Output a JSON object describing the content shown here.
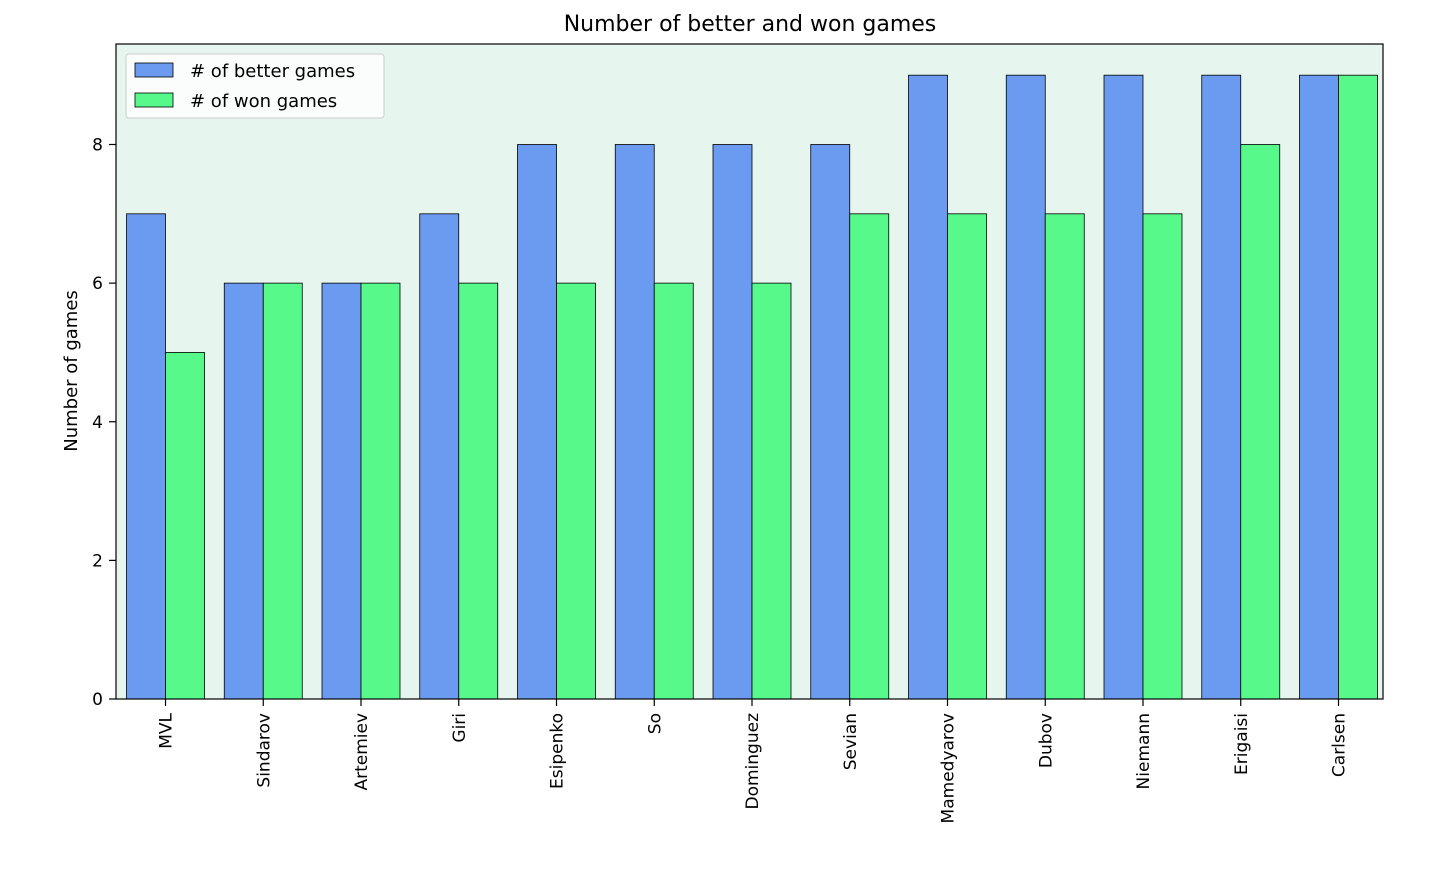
{
  "chart_data": {
    "type": "bar",
    "title": "Number of better and won games",
    "xlabel": "",
    "ylabel": "Number of games",
    "ylim": [
      0,
      9.45
    ],
    "yticks": [
      0,
      2,
      4,
      6,
      8
    ],
    "categories": [
      "MVL",
      "Sindarov",
      "Artemiev",
      "Giri",
      "Esipenko",
      "So",
      "Dominguez",
      "Sevian",
      "Mamedyarov",
      "Dubov",
      "Niemann",
      "Erigaisi",
      "Carlsen"
    ],
    "series": [
      {
        "name": "# of better games",
        "color": "#6a9bf0",
        "values": [
          7,
          6,
          6,
          7,
          8,
          8,
          8,
          8,
          9,
          9,
          9,
          9,
          9
        ]
      },
      {
        "name": "# of won games",
        "color": "#57f98b",
        "values": [
          5,
          6,
          6,
          6,
          6,
          6,
          6,
          7,
          7,
          7,
          7,
          8,
          9
        ]
      }
    ],
    "legend_position": "top-left",
    "plot_background": "#e6f6ef",
    "grid": false
  }
}
